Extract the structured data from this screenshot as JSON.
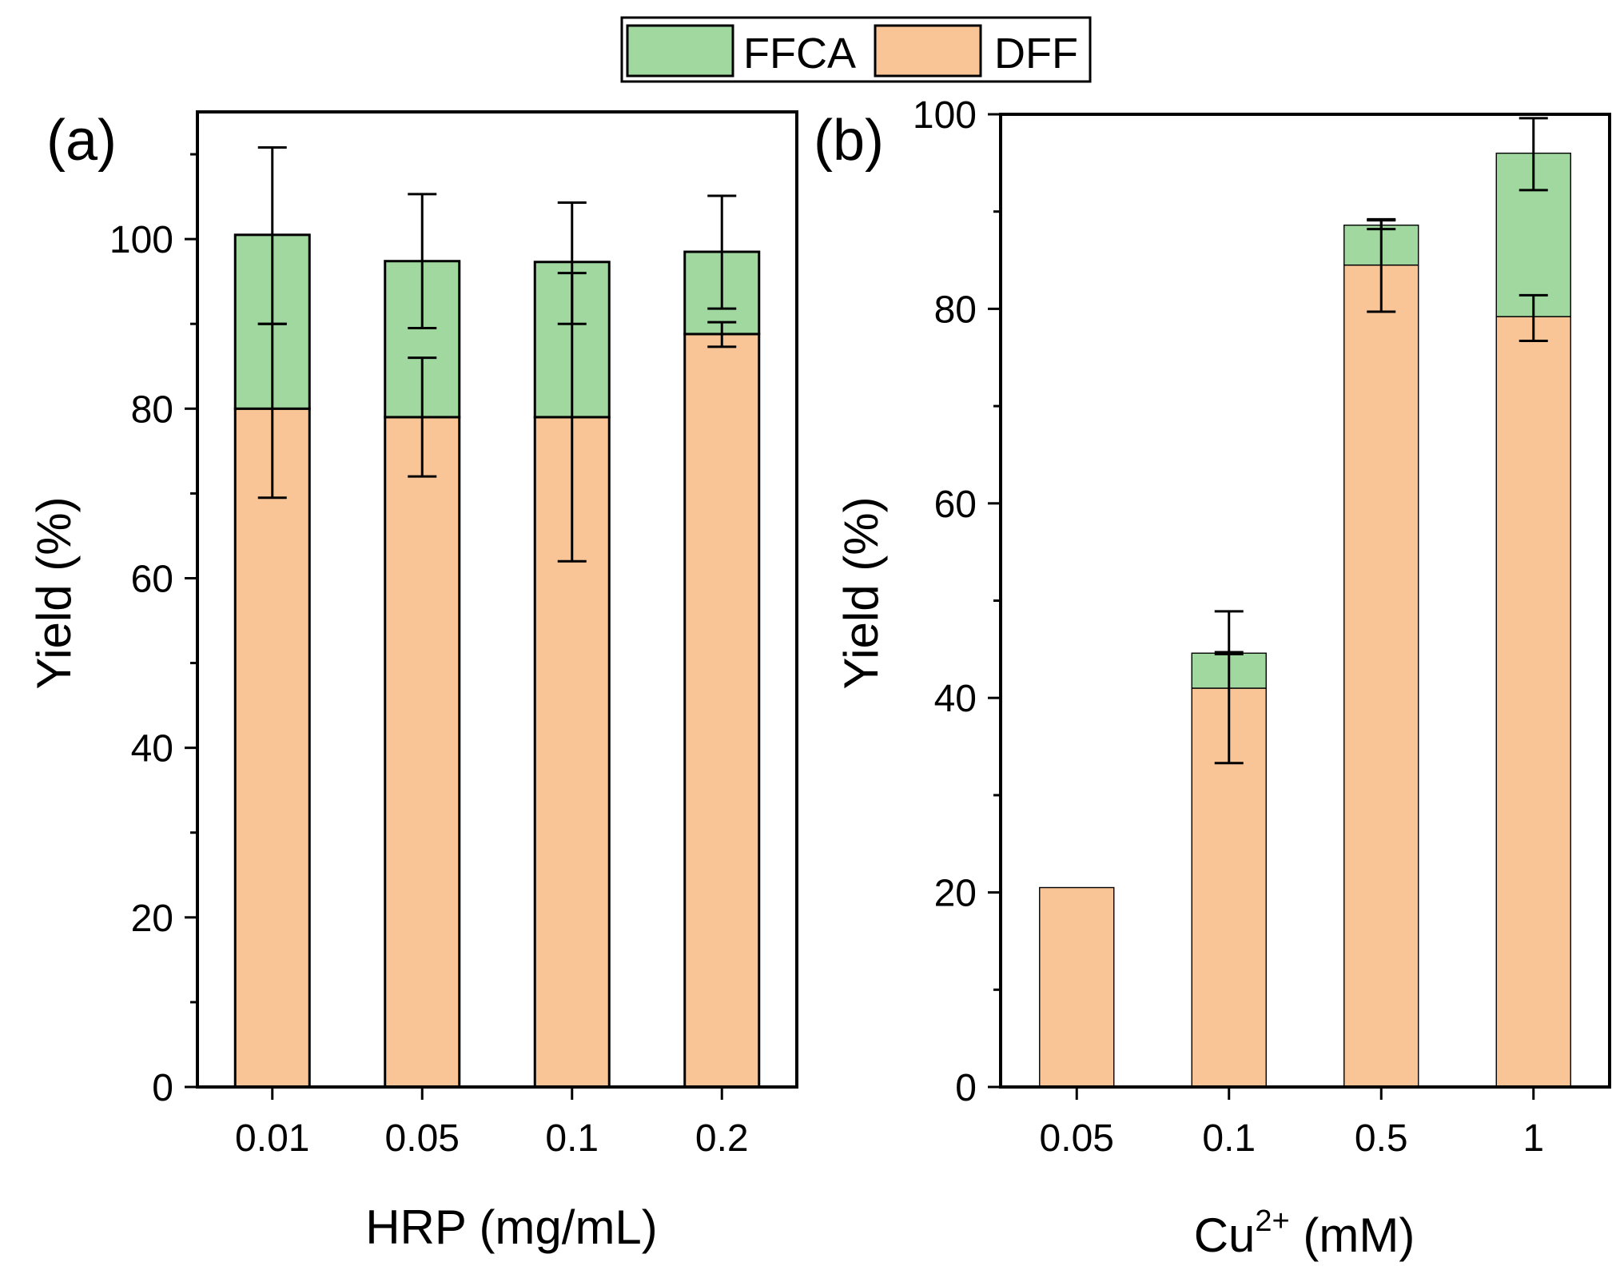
{
  "legend": {
    "items": [
      {
        "label": "FFCA",
        "color": "#a0d8a0"
      },
      {
        "label": "DFF",
        "color": "#f9c596"
      }
    ]
  },
  "colors": {
    "dff": "#f9c596",
    "ffca": "#a0d8a0",
    "outline": "#000000"
  },
  "chart_data": [
    {
      "type": "bar",
      "stacked": true,
      "panel_label": "(a)",
      "xlabel": "HRP (mg/mL)",
      "ylabel": "Yield (%)",
      "ylim": [
        0,
        115
      ],
      "yticks": [
        0,
        20,
        40,
        60,
        80,
        100
      ],
      "categories": [
        "0.01",
        "0.05",
        "0.1",
        "0.2"
      ],
      "series": [
        {
          "name": "DFF",
          "values": [
            80,
            79,
            79,
            88.8
          ]
        },
        {
          "name": "FFCA",
          "values": [
            20.5,
            18.4,
            18.3,
            9.7
          ]
        }
      ],
      "error_bars": [
        {
          "series": "DFF",
          "low": [
            69.5,
            72,
            62,
            87.3
          ],
          "high": [
            90,
            86,
            96,
            90.2
          ]
        },
        {
          "series": "FFCA",
          "low": [
            90,
            89.5,
            90,
            91.8
          ],
          "high": [
            110.8,
            105.3,
            104.3,
            105.1
          ]
        }
      ],
      "legend": "top-center"
    },
    {
      "type": "bar",
      "stacked": true,
      "panel_label": "(b)",
      "xlabel": "Cu",
      "xlabel_superscript": "2+",
      "xlabel_suffix": " (mM)",
      "ylabel": "Yield (%)",
      "ylim": [
        0,
        100
      ],
      "yticks": [
        0,
        20,
        40,
        60,
        80,
        100
      ],
      "categories": [
        "0.05",
        "0.1",
        "0.5",
        "1"
      ],
      "series": [
        {
          "name": "DFF",
          "values": [
            20.5,
            41,
            84.5,
            79.2
          ]
        },
        {
          "name": "FFCA",
          "values": [
            0,
            3.6,
            4.1,
            16.8
          ]
        }
      ],
      "error_bars": [
        {
          "series": "DFF",
          "low": [
            null,
            33.3,
            79.7,
            76.7
          ],
          "high": [
            null,
            44.7,
            89.2,
            81.4
          ]
        },
        {
          "series": "FFCA",
          "low": [
            null,
            44.5,
            88.2,
            92.2
          ],
          "high": [
            null,
            48.9,
            89.1,
            99.6
          ]
        }
      ]
    }
  ]
}
